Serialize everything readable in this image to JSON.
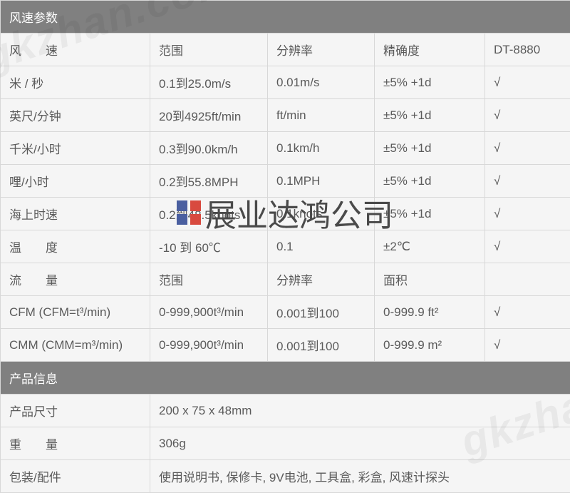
{
  "sections": {
    "wind_title": "风速参数",
    "product_title": "产品信息"
  },
  "headers": {
    "speed": "风　　速",
    "range": "范围",
    "resolution": "分辨率",
    "accuracy": "精确度",
    "model": "DT-8880",
    "temp": "温　　度",
    "flow": "流　　量",
    "area": "面积"
  },
  "rows": [
    {
      "unit": "米 / 秒",
      "range": "0.1到25.0m/s",
      "res": "0.01m/s",
      "acc": "±5% +1d",
      "check": "√"
    },
    {
      "unit": "英尺/分钟",
      "range": "20到4925ft/min",
      "res": "ft/min",
      "acc": "±5% +1d",
      "check": "√"
    },
    {
      "unit": "千米/小时",
      "range": "0.3到90.0km/h",
      "res": "0.1km/h",
      "acc": "±5% +1d",
      "check": "√"
    },
    {
      "unit": "哩/小时",
      "range": "0.2到55.8MPH",
      "res": "0.1MPH",
      "acc": "±5% +1d",
      "check": "√"
    },
    {
      "unit": "海上时速",
      "range": "0.2到48.5knots",
      "res": "0.1knots",
      "acc": "±5% +1d",
      "check": "√"
    }
  ],
  "temp_row": {
    "range": "-10 到 60℃",
    "res": "0.1",
    "acc": "±2℃",
    "check": "√"
  },
  "flow_rows": [
    {
      "unit": "CFM (CFM=t³/min)",
      "range": "0-999,900t³/min",
      "res": "0.001到100",
      "acc": "0-999.9 ft²",
      "check": "√"
    },
    {
      "unit": "CMM (CMM=m³/min)",
      "range": "0-999,900t³/min",
      "res": "0.001到100",
      "acc": "0-999.9 m²",
      "check": "√"
    }
  ],
  "product": {
    "size_label": "产品尺寸",
    "size_val": "200 x 75 x 48mm",
    "weight_label": "重　　量",
    "weight_val": "306g",
    "pack_label": "包装/配件",
    "pack_val": "使用说明书, 保修卡, 9V电池, 工具盒, 彩盒, 风速计探头"
  },
  "watermark": {
    "bg": "gkzhan.com",
    "center": "展业达鸿公司"
  },
  "style": {
    "header_bg": "#808080",
    "header_fg": "#ffffff",
    "border": "#d8d8d8",
    "text": "#5a5a5a",
    "body_bg": "#f5f5f5"
  }
}
